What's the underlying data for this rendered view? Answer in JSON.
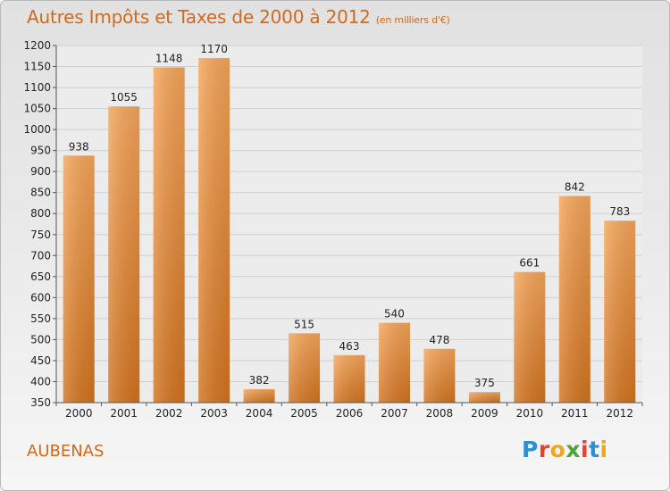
{
  "header": {
    "title": "Autres Impôts et Taxes de 2000 à 2012",
    "unit": "(en milliers d'€)"
  },
  "footer": {
    "city": "AUBENAS",
    "logo": [
      "P",
      "r",
      "o",
      "x",
      "i",
      "t",
      "i"
    ],
    "logo_colors": [
      "#2f8fd0",
      "#e8412e",
      "#f2a61d",
      "#4aa63b",
      "#e8412e",
      "#2f8fd0",
      "#f2a61d"
    ]
  },
  "colors": {
    "bar_top": "#f5a55a",
    "bar_bottom": "#d2731f",
    "axis": "#555555",
    "grid": "#d0d0d0"
  },
  "chart_data": {
    "type": "bar",
    "title": "Autres Impôts et Taxes de 2000 à 2012",
    "categories": [
      "2000",
      "2001",
      "2002",
      "2003",
      "2004",
      "2005",
      "2006",
      "2007",
      "2008",
      "2009",
      "2010",
      "2011",
      "2012"
    ],
    "values": [
      938,
      1055,
      1148,
      1170,
      382,
      515,
      463,
      540,
      478,
      375,
      661,
      842,
      783
    ],
    "ylim": [
      350,
      1200
    ],
    "yticks": [
      350,
      400,
      450,
      500,
      550,
      600,
      650,
      700,
      750,
      800,
      850,
      900,
      950,
      1000,
      1050,
      1100,
      1150,
      1200
    ],
    "grid": true,
    "xlabel": "",
    "ylabel": ""
  }
}
